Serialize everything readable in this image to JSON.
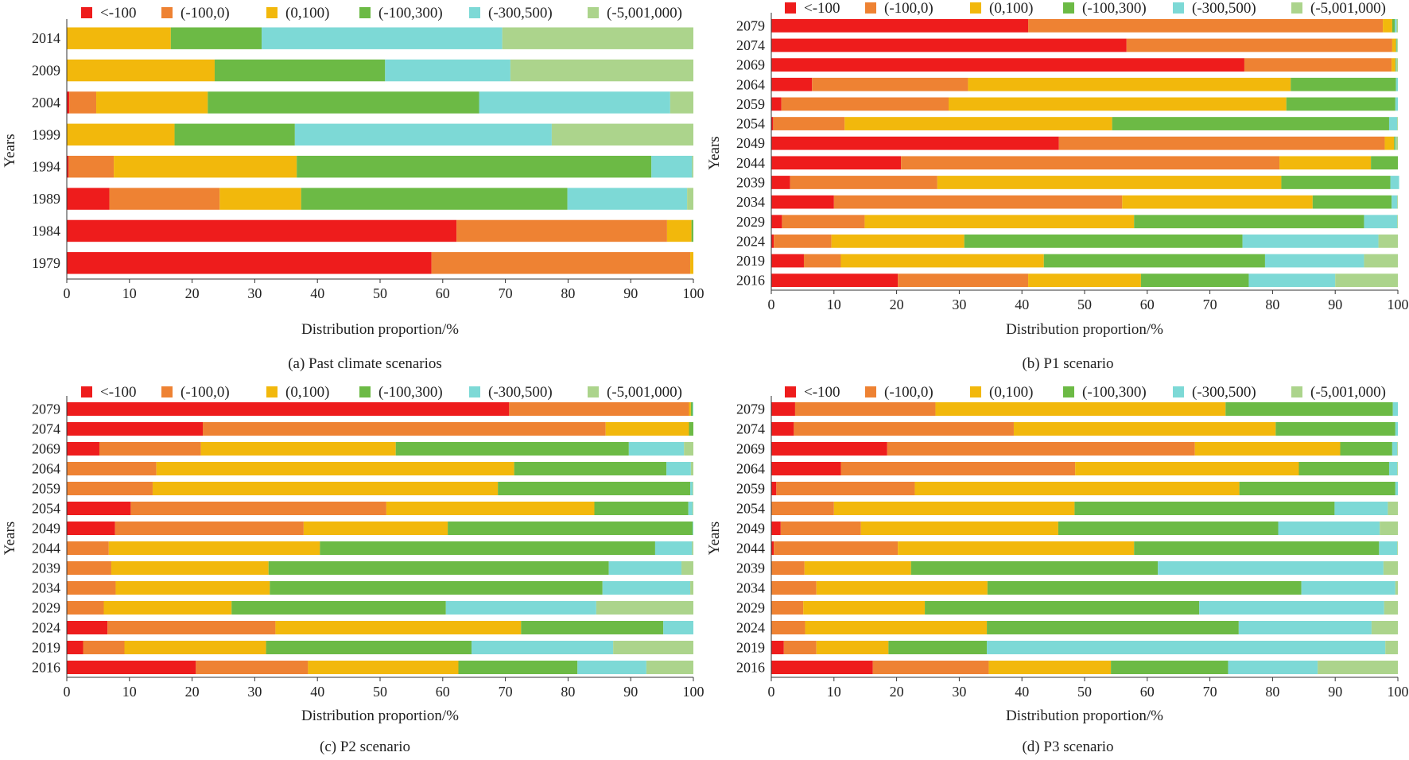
{
  "figure": {
    "colors": [
      "#ee1c1c",
      "#ee8233",
      "#f2b80c",
      "#6cba45",
      "#7dd9d6",
      "#acd48c"
    ]
  },
  "chart_data": [
    {
      "type": "bar",
      "orientation": "horizontal",
      "stacked": true,
      "caption": "(a) Past climate scenarios",
      "xlabel": "Distribution proportion/%",
      "ylabel": "Years",
      "xlim": [
        0,
        100
      ],
      "xticks": [
        "0",
        "10",
        "20",
        "30",
        "40",
        "50",
        "60",
        "70",
        "80",
        "90",
        "100"
      ],
      "legend": [
        "<-100",
        "(-100,0)",
        "(0,100)",
        "(-100,300)",
        "(-300,500)",
        "(-5,001,000)"
      ],
      "legend_position": "top",
      "categories": [
        "2014",
        "2009",
        "2004",
        "1999",
        "1994",
        "1989",
        "1984",
        "1979"
      ],
      "series": [
        {
          "name": "<-100",
          "values": [
            0,
            0,
            0.4,
            0,
            0.3,
            6.8,
            62.2,
            58.2
          ]
        },
        {
          "name": "(-100,0)",
          "values": [
            0,
            0,
            4.3,
            0,
            7.2,
            17.6,
            33.6,
            41.3
          ]
        },
        {
          "name": "(0,100)",
          "values": [
            16.6,
            23.6,
            17.8,
            17.2,
            29.2,
            13.0,
            3.9,
            0.5
          ]
        },
        {
          "name": "(-100,300)",
          "values": [
            14.5,
            27.2,
            43.3,
            19.2,
            56.6,
            42.5,
            0.3,
            0
          ]
        },
        {
          "name": "(-300,500)",
          "values": [
            38.4,
            20.0,
            30.5,
            41.0,
            6.5,
            19.1,
            0,
            0
          ]
        },
        {
          "name": "(-5,001,000)",
          "values": [
            30.5,
            29.2,
            3.7,
            22.6,
            0.2,
            1.0,
            0,
            0
          ]
        }
      ]
    },
    {
      "type": "bar",
      "orientation": "horizontal",
      "stacked": true,
      "caption": "(b) P1 scenario",
      "xlabel": "Distribution proportion/%",
      "ylabel": "Years",
      "xlim": [
        0,
        100
      ],
      "xticks": [
        "0",
        "10",
        "20",
        "30",
        "40",
        "50",
        "60",
        "70",
        "80",
        "90",
        "100"
      ],
      "legend": [
        "<-100",
        "(-100,0)",
        "(0,100)",
        "(-100,300)",
        "(-300,500)",
        "(-5,001,000)"
      ],
      "legend_position": "top",
      "categories": [
        "2079",
        "2074",
        "2069",
        "2064",
        "2059",
        "2054",
        "2049",
        "2044",
        "2039",
        "2034",
        "2029",
        "2024",
        "2019",
        "2016"
      ],
      "series": [
        {
          "name": "<-100",
          "values": [
            41.0,
            56.7,
            75.5,
            6.5,
            1.6,
            0.3,
            45.9,
            20.7,
            3.0,
            10.0,
            1.7,
            0.4,
            5.2,
            20.2
          ]
        },
        {
          "name": "(-100,0)",
          "values": [
            56.6,
            42.4,
            23.5,
            24.9,
            26.7,
            11.4,
            52.0,
            60.4,
            23.5,
            46.0,
            13.2,
            9.2,
            5.9,
            20.8
          ]
        },
        {
          "name": "(0,100)",
          "values": [
            1.5,
            0.6,
            0.6,
            51.5,
            53.9,
            42.7,
            1.5,
            14.6,
            54.9,
            30.4,
            43.0,
            21.2,
            32.4,
            18.0
          ]
        },
        {
          "name": "(-100,300)",
          "values": [
            0.4,
            0.1,
            0.1,
            16.8,
            17.4,
            44.2,
            0.2,
            4.3,
            17.4,
            12.6,
            36.7,
            44.4,
            35.3,
            17.2
          ]
        },
        {
          "name": "(-300,500)",
          "values": [
            0.3,
            0.1,
            0.1,
            0.3,
            0.4,
            1.3,
            0.1,
            0,
            1.4,
            0.9,
            5.3,
            21.7,
            15.8,
            13.8
          ]
        },
        {
          "name": "(-5,001,000)",
          "values": [
            0.2,
            0.1,
            0.2,
            0,
            0,
            0.1,
            0.3,
            0,
            0,
            0.1,
            0.1,
            3.1,
            5.4,
            10.0
          ]
        }
      ]
    },
    {
      "type": "bar",
      "orientation": "horizontal",
      "stacked": true,
      "caption": "(c) P2 scenario",
      "xlabel": "Distribution proportion/%",
      "ylabel": "Years",
      "xlim": [
        0,
        100
      ],
      "xticks": [
        "0",
        "10",
        "20",
        "30",
        "40",
        "50",
        "60",
        "70",
        "80",
        "90",
        "100"
      ],
      "legend": [
        "<-100",
        "(-100,0)",
        "(0,100)",
        "(-100,300)",
        "(-300,500)",
        "(-5,001,000)"
      ],
      "legend_position": "top",
      "categories": [
        "2079",
        "2074",
        "2069",
        "2064",
        "2059",
        "2054",
        "2049",
        "2044",
        "2039",
        "2034",
        "2029",
        "2024",
        "2019",
        "2016"
      ],
      "series": [
        {
          "name": "<-100",
          "values": [
            70.6,
            21.7,
            5.2,
            0,
            0,
            10.2,
            7.7,
            0,
            0,
            0,
            0,
            6.5,
            2.6,
            20.6
          ]
        },
        {
          "name": "(-100,0)",
          "values": [
            28.7,
            64.3,
            16.2,
            14.3,
            13.7,
            40.8,
            30.1,
            6.7,
            7.1,
            7.8,
            5.9,
            26.8,
            6.6,
            17.9
          ]
        },
        {
          "name": "(0,100)",
          "values": [
            0.3,
            13.3,
            31.1,
            57.1,
            55.1,
            33.2,
            23.0,
            33.7,
            25.1,
            24.6,
            20.4,
            39.2,
            22.6,
            24.0
          ]
        },
        {
          "name": "(-100,300)",
          "values": [
            0.3,
            0.7,
            37.2,
            24.3,
            30.7,
            15.0,
            39.1,
            53.5,
            54.3,
            53.1,
            34.2,
            22.7,
            32.8,
            19.0
          ]
        },
        {
          "name": "(-300,500)",
          "values": [
            0.1,
            0,
            8.8,
            3.9,
            0.4,
            0.7,
            0.1,
            5.9,
            11.6,
            14.0,
            24.0,
            4.8,
            22.6,
            11.0
          ]
        },
        {
          "name": "(-5,001,000)",
          "values": [
            0,
            0,
            1.5,
            0.4,
            0.1,
            0.1,
            0,
            0.2,
            1.9,
            0.5,
            15.5,
            0,
            12.8,
            7.5
          ]
        }
      ]
    },
    {
      "type": "bar",
      "orientation": "horizontal",
      "stacked": true,
      "caption": "(d) P3 scenario",
      "xlabel": "Distribution proportion/%",
      "ylabel": "Years",
      "xlim": [
        0,
        100
      ],
      "xticks": [
        "0",
        "10",
        "20",
        "30",
        "40",
        "50",
        "60",
        "70",
        "80",
        "90",
        "100"
      ],
      "legend": [
        "<-100",
        "(-100,0)",
        "(0,100)",
        "(-100,300)",
        "(-300,500)",
        "(-5,001,000)"
      ],
      "legend_position": "top",
      "categories": [
        "2079",
        "2074",
        "2069",
        "2064",
        "2059",
        "2054",
        "2049",
        "2044",
        "2039",
        "2034",
        "2029",
        "2024",
        "2019",
        "2016"
      ],
      "series": [
        {
          "name": "<-100",
          "values": [
            3.8,
            3.6,
            18.5,
            11.1,
            0.8,
            0,
            1.5,
            0.4,
            0,
            0,
            0,
            0,
            2.0,
            16.2
          ]
        },
        {
          "name": "(-100,0)",
          "values": [
            22.4,
            35.1,
            49.1,
            37.4,
            22.1,
            10.0,
            12.8,
            19.8,
            5.3,
            7.2,
            5.1,
            5.4,
            5.2,
            18.5
          ]
        },
        {
          "name": "(0,100)",
          "values": [
            46.3,
            41.8,
            23.2,
            35.7,
            51.8,
            38.4,
            31.5,
            37.7,
            17.0,
            27.3,
            19.4,
            29.0,
            11.5,
            19.5
          ]
        },
        {
          "name": "(-100,300)",
          "values": [
            26.7,
            19.1,
            8.3,
            14.4,
            24.9,
            41.5,
            35.1,
            39.1,
            39.4,
            50.1,
            43.8,
            40.2,
            15.7,
            18.7
          ]
        },
        {
          "name": "(-300,500)",
          "values": [
            0.8,
            0.4,
            0.8,
            1.3,
            0.4,
            8.5,
            16.2,
            2.9,
            36.0,
            15.0,
            29.5,
            21.2,
            63.6,
            14.3
          ]
        },
        {
          "name": "(-5,001,000)",
          "values": [
            0,
            0,
            0.1,
            0.1,
            0,
            1.6,
            2.9,
            0.1,
            2.3,
            0.4,
            2.2,
            4.2,
            2.0,
            12.8
          ]
        }
      ]
    }
  ]
}
